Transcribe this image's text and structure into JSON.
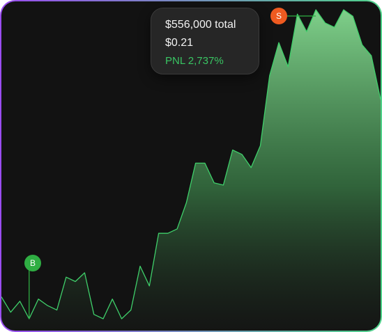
{
  "tooltip": {
    "total": "$556,000 total",
    "price": "$0.21",
    "pnl": "PNL 2,737%"
  },
  "markers": {
    "buy": "B",
    "sell": "S"
  },
  "colors": {
    "line": "#3fcf6a",
    "buy": "#2fae43",
    "sell": "#ee5a20",
    "background": "#121212"
  },
  "chart_data": {
    "type": "area",
    "values": [
      0.05,
      0.015,
      0.04,
      0.0,
      0.045,
      0.03,
      0.02,
      0.095,
      0.085,
      0.105,
      0.01,
      0.0,
      0.045,
      0.0,
      0.02,
      0.12,
      0.075,
      0.195,
      0.195,
      0.205,
      0.265,
      0.355,
      0.355,
      0.31,
      0.305,
      0.385,
      0.375,
      0.345,
      0.395,
      0.555,
      0.63,
      0.575,
      0.695,
      0.655,
      0.705,
      0.675,
      0.665,
      0.705,
      0.69,
      0.625,
      0.6,
      0.5
    ]
  }
}
